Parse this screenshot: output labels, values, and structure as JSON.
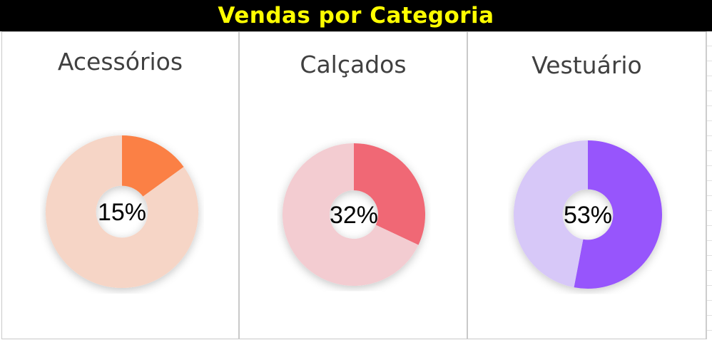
{
  "title": "Vendas por Categoria",
  "colors": {
    "title_bg": "#000000",
    "title_text": "#ffff00"
  },
  "chart_data": [
    {
      "type": "pie",
      "title": "Acessórios",
      "values": [
        15,
        85
      ],
      "label": "15%",
      "colors": [
        "#fb8045",
        "#f6d5c6"
      ]
    },
    {
      "type": "pie",
      "title": "Calçados",
      "values": [
        32,
        68
      ],
      "label": "32%",
      "colors": [
        "#f06774",
        "#f3ccd1"
      ]
    },
    {
      "type": "pie",
      "title": "Vestuário",
      "values": [
        53,
        47
      ],
      "label": "53%",
      "colors": [
        "#9755fc",
        "#d7c8f8"
      ]
    }
  ]
}
